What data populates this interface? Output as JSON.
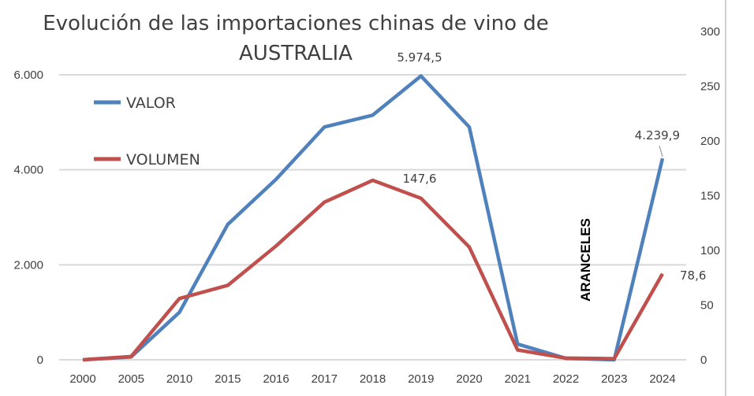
{
  "chart_data": {
    "type": "line",
    "title_line1": "Evolución de las importaciones chinas de vino de",
    "title_line2": "AUSTRALIA",
    "categories": [
      "2000",
      "2005",
      "2010",
      "2015",
      "2016",
      "2017",
      "2018",
      "2019",
      "2020",
      "2021",
      "2022",
      "2023",
      "2024"
    ],
    "series": [
      {
        "name": "VALOR",
        "axis": "left",
        "color": "#4F81BD",
        "values": [
          0,
          60,
          1000,
          2850,
          3800,
          4900,
          5150,
          5974.5,
          4900,
          330,
          30,
          0,
          4239.9
        ]
      },
      {
        "name": "VOLUMEN",
        "axis": "right",
        "color": "#C0504D",
        "values": [
          0,
          3,
          56,
          68,
          104,
          144,
          164,
          147.6,
          103,
          9,
          1.5,
          1,
          78.6
        ]
      }
    ],
    "left_axis": {
      "ylim": [
        0,
        6000
      ],
      "ticks": [
        0,
        2000,
        4000,
        6000
      ],
      "tick_labels": [
        "0",
        "2.000",
        "4.000",
        "6.000"
      ]
    },
    "right_axis": {
      "ylim": [
        0,
        300
      ],
      "ticks": [
        0,
        50,
        100,
        150,
        200,
        250,
        300
      ],
      "tick_labels": [
        "0",
        "50",
        "100",
        "150",
        "200",
        "250",
        "300"
      ]
    },
    "data_labels": [
      {
        "series": "VALOR",
        "category": "2019",
        "text": "5.974,5"
      },
      {
        "series": "VOLUMEN",
        "category": "2019",
        "text": "147,6"
      },
      {
        "series": "VALOR",
        "category": "2024",
        "text": "4.239,9"
      },
      {
        "series": "VOLUMEN",
        "category": "2024",
        "text": "78,6"
      }
    ],
    "annotation": "ARANCELES",
    "grid": true,
    "legend_position": "top-left"
  }
}
